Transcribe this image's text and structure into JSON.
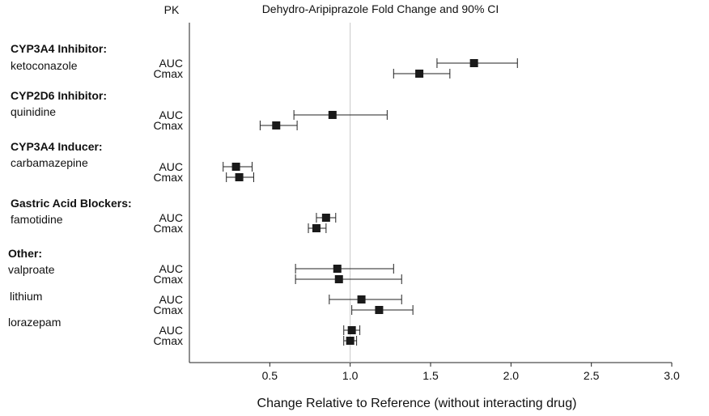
{
  "chart_data": {
    "type": "scatter",
    "subtype": "forest-plot",
    "header_pk": "PK",
    "title": "Dehydro-Aripiprazole Fold Change and 90% CI",
    "xlabel": "Change Relative to Reference (without interacting drug)",
    "xlim": [
      0,
      3.0
    ],
    "x_ticks": [
      "0.5",
      "1.0",
      "1.5",
      "2.0",
      "2.5",
      "3.0"
    ],
    "reference_line": 1.0,
    "groups": [
      {
        "title": "CYP3A4 Inhibitor:",
        "drug": "ketoconazole",
        "rows": [
          {
            "pk": "AUC",
            "est": 1.77,
            "lo": 1.54,
            "hi": 2.04
          },
          {
            "pk": "Cmax",
            "est": 1.43,
            "lo": 1.27,
            "hi": 1.62
          }
        ]
      },
      {
        "title": "CYP2D6 Inhibitor:",
        "drug": "quinidine",
        "rows": [
          {
            "pk": "AUC",
            "est": 0.89,
            "lo": 0.65,
            "hi": 1.23
          },
          {
            "pk": "Cmax",
            "est": 0.54,
            "lo": 0.44,
            "hi": 0.67
          }
        ]
      },
      {
        "title": "CYP3A4 Inducer:",
        "drug": "carbamazepine",
        "rows": [
          {
            "pk": "AUC",
            "est": 0.29,
            "lo": 0.21,
            "hi": 0.39
          },
          {
            "pk": "Cmax",
            "est": 0.31,
            "lo": 0.23,
            "hi": 0.4
          }
        ]
      },
      {
        "title": "Gastric Acid Blockers:",
        "drug": "famotidine",
        "rows": [
          {
            "pk": "AUC",
            "est": 0.85,
            "lo": 0.79,
            "hi": 0.91
          },
          {
            "pk": "Cmax",
            "est": 0.79,
            "lo": 0.74,
            "hi": 0.85
          }
        ]
      },
      {
        "title": "Other:",
        "drug": "valproate",
        "rows": [
          {
            "pk": "AUC",
            "est": 0.92,
            "lo": 0.66,
            "hi": 1.27
          },
          {
            "pk": "Cmax",
            "est": 0.93,
            "lo": 0.66,
            "hi": 1.32
          }
        ]
      },
      {
        "title": "",
        "drug": "lithium",
        "rows": [
          {
            "pk": "AUC",
            "est": 1.07,
            "lo": 0.87,
            "hi": 1.32
          },
          {
            "pk": "Cmax",
            "est": 1.18,
            "lo": 1.01,
            "hi": 1.39
          }
        ]
      },
      {
        "title": "",
        "drug": "lorazepam",
        "rows": [
          {
            "pk": "AUC",
            "est": 1.01,
            "lo": 0.96,
            "hi": 1.06
          },
          {
            "pk": "Cmax",
            "est": 1.0,
            "lo": 0.96,
            "hi": 1.04
          }
        ]
      }
    ]
  }
}
